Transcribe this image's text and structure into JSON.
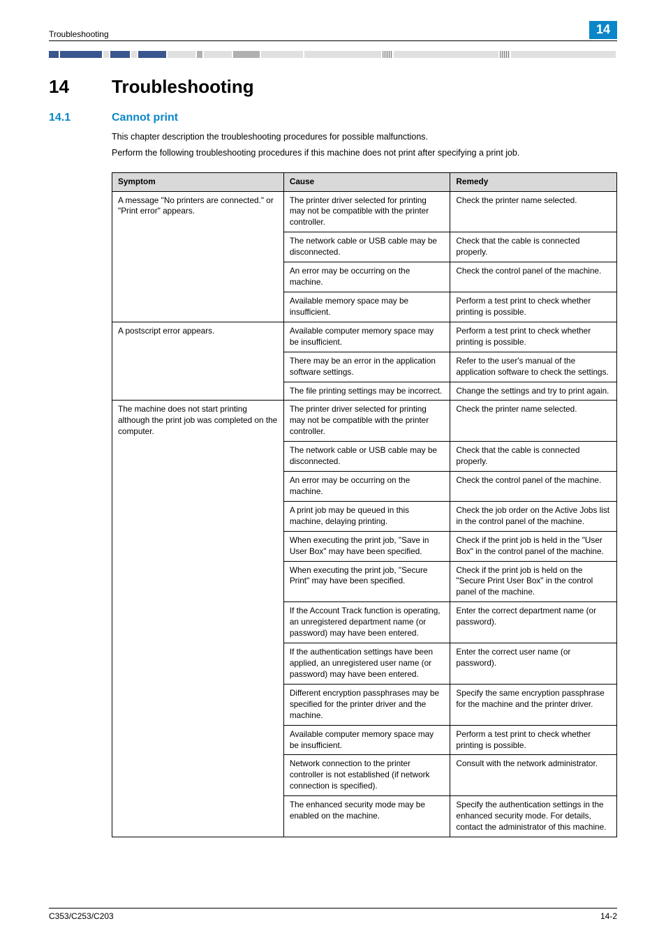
{
  "header": {
    "running_title": "Troubleshooting",
    "chapter_number": "14"
  },
  "headings": {
    "h1_num": "14",
    "h1_text": "Troubleshooting",
    "h2_num": "14.1",
    "h2_text": "Cannot print"
  },
  "paragraphs": {
    "p1": "This chapter description the troubleshooting procedures for possible malfunctions.",
    "p2": "Perform the following troubleshooting procedures if this machine does not print after specifying a print job."
  },
  "table": {
    "headers": {
      "symptom": "Symptom",
      "cause": "Cause",
      "remedy": "Remedy"
    },
    "groups": [
      {
        "symptom": "A message \"No printers are connected.\" or \"Print error\" appears.",
        "rows": [
          {
            "cause": "The printer driver selected for printing may not be compatible with the printer controller.",
            "remedy": "Check the printer name selected."
          },
          {
            "cause": "The network cable or USB cable may be disconnected.",
            "remedy": "Check that the cable is connected properly."
          },
          {
            "cause": "An error may be occurring on the machine.",
            "remedy": "Check the control panel of the machine."
          },
          {
            "cause": "Available memory space may be insufficient.",
            "remedy": "Perform a test print to check whether printing is possible."
          }
        ]
      },
      {
        "symptom": "A postscript error appears.",
        "rows": [
          {
            "cause": "Available computer memory space may be insufficient.",
            "remedy": "Perform a test print to check whether printing is possible."
          },
          {
            "cause": "There may be an error in the application software settings.",
            "remedy": "Refer to the user's manual of the application software to check the settings."
          },
          {
            "cause": "The file printing settings may be incorrect.",
            "remedy": "Change the settings and try to print again."
          }
        ]
      },
      {
        "symptom": "The machine does not start printing although the print job was completed on the computer.",
        "rows": [
          {
            "cause": "The printer driver selected for printing may not be compatible with the printer controller.",
            "remedy": "Check the printer name selected."
          },
          {
            "cause": "The network cable or USB cable may be disconnected.",
            "remedy": "Check that the cable is connected properly."
          },
          {
            "cause": "An error may be occurring on the machine.",
            "remedy": "Check the control panel of the machine."
          },
          {
            "cause": "A print job may be queued in this machine, delaying printing.",
            "remedy": "Check the job order on the Active Jobs list in the control panel of the machine."
          },
          {
            "cause": "When executing the print job, \"Save in User Box\" may have been specified.",
            "remedy": "Check if the print job is held in the \"User Box\" in the control panel of the machine."
          },
          {
            "cause": "When executing the print job, \"Secure Print\" may have been specified.",
            "remedy": "Check if the print job is held on the \"Secure Print User Box\" in the control panel of the machine."
          },
          {
            "cause": "If the Account Track function is operating, an unregistered department name (or password) may have been entered.",
            "remedy": "Enter the correct department name (or password)."
          },
          {
            "cause": "If the authentication settings have been applied, an unregistered user name (or password) may have been entered.",
            "remedy": "Enter the correct user name (or password)."
          },
          {
            "cause": "Different encryption passphrases may be specified for the printer driver and the machine.",
            "remedy": "Specify the same encryption passphrase for the machine and the printer driver."
          },
          {
            "cause": "Available computer memory space may be insufficient.",
            "remedy": "Perform a test print to check whether printing is possible."
          },
          {
            "cause": "Network connection to the printer controller is not established (if network connection is specified).",
            "remedy": "Consult with the network administrator."
          },
          {
            "cause": "The enhanced security mode may be enabled on the machine.",
            "remedy": "Specify the authentication settings in the enhanced security mode. For details, contact the administrator of this machine."
          }
        ]
      }
    ]
  },
  "footer": {
    "left": "C353/C253/C203",
    "right": "14-2"
  }
}
